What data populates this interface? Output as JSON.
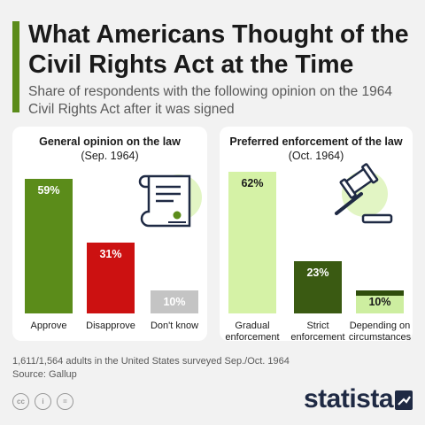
{
  "title": "What Americans Thought of the Civil Rights Act at the Time",
  "subtitle": "Share of respondents with the following opinion on the 1964 Civil Rights Act after it was signed",
  "colors": {
    "accent": "#5b8c1a",
    "approve": "#5b8c1a",
    "disapprove": "#cc1111",
    "dont_know": "#c4c4c4",
    "gradual": "#d5f2a6",
    "strict": "#3a5a12",
    "depending": "#2f4d0c",
    "icon_bg": "#e2f5c4",
    "dark": "#1f2a44"
  },
  "chart_data": [
    {
      "type": "bar",
      "title_bold": "General opinion on the law",
      "title_rest": "(Sep. 1964)",
      "categories": [
        "Approve",
        "Disapprove",
        "Don't know"
      ],
      "values": [
        59,
        31,
        10
      ],
      "value_labels": [
        "59%",
        "31%",
        "10%"
      ],
      "ylim": [
        0,
        62
      ]
    },
    {
      "type": "bar",
      "title_bold": "Preferred enforcement of the law",
      "title_rest": "(Oct. 1964)",
      "categories": [
        "Gradual enforcement",
        "Strict enforcement",
        "Depending on circumstances"
      ],
      "values": [
        62,
        23,
        10
      ],
      "value_labels": [
        "62%",
        "23%",
        "10%"
      ],
      "ylim": [
        0,
        62
      ]
    }
  ],
  "footer": {
    "note": "1,611/1,564 adults in the United States surveyed Sep./Oct. 1964",
    "source": "Source: Gallup"
  },
  "cc_icons": [
    "cc",
    "i",
    "="
  ],
  "logo": "statista"
}
